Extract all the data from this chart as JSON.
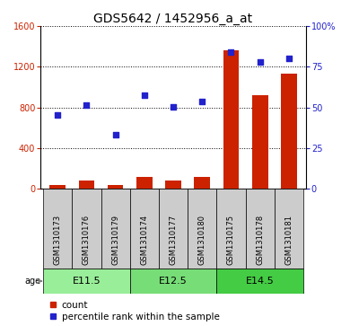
{
  "title": "GDS5642 / 1452956_a_at",
  "samples": [
    "GSM1310173",
    "GSM1310176",
    "GSM1310179",
    "GSM1310174",
    "GSM1310177",
    "GSM1310180",
    "GSM1310175",
    "GSM1310178",
    "GSM1310181"
  ],
  "counts": [
    40,
    80,
    35,
    120,
    80,
    115,
    1360,
    920,
    1130
  ],
  "percentiles": [
    730,
    820,
    530,
    920,
    810,
    855,
    1340,
    1250,
    1280
  ],
  "bar_color": "#cc2200",
  "dot_color": "#2222cc",
  "left_ylim": [
    0,
    1600
  ],
  "left_yticks": [
    0,
    400,
    800,
    1200,
    1600
  ],
  "right_yticks": [
    0,
    25,
    50,
    75,
    100
  ],
  "right_yticklabels": [
    "0",
    "25",
    "50",
    "75",
    "100%"
  ],
  "age_groups": [
    {
      "label": "E11.5",
      "start": 0,
      "end": 3,
      "color": "#99ee99"
    },
    {
      "label": "E12.5",
      "start": 3,
      "end": 6,
      "color": "#77dd77"
    },
    {
      "label": "E14.5",
      "start": 6,
      "end": 9,
      "color": "#44cc44"
    }
  ],
  "bg_color": "#ffffff",
  "label_box_color": "#cccccc",
  "legend_count_label": "count",
  "legend_percentile_label": "percentile rank within the sample",
  "title_fontsize": 10,
  "tick_fontsize": 7,
  "sample_fontsize": 6,
  "age_fontsize": 8,
  "legend_fontsize": 7.5
}
